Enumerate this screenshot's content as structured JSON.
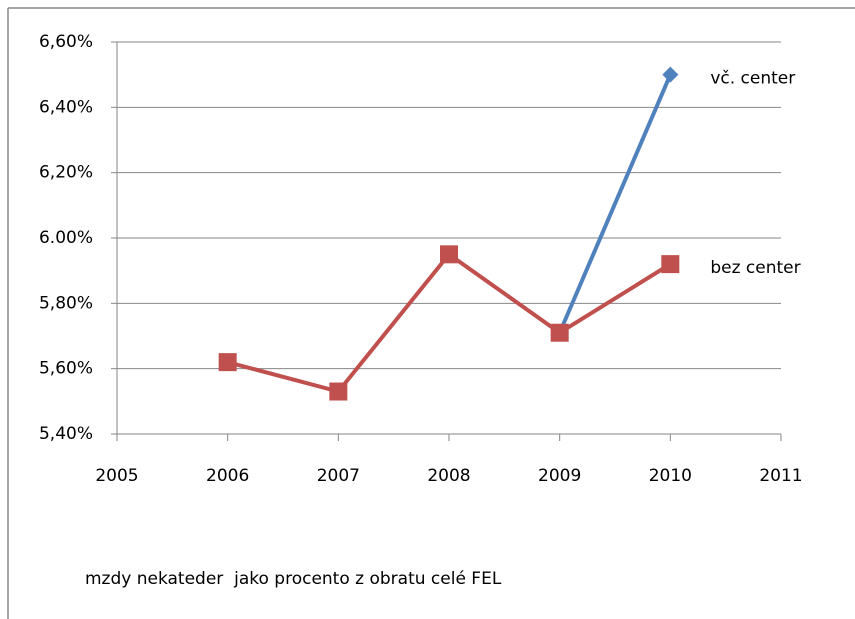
{
  "chart_data": {
    "type": "line",
    "caption": "mzdy nekateder  jako procento z obratu celé FEL",
    "x": [
      2006,
      2007,
      2008,
      2009,
      2010
    ],
    "series": [
      {
        "name": "vč. center",
        "color": "#4f81bd",
        "marker": "diamond",
        "values": [
          null,
          null,
          null,
          5.71,
          6.5
        ]
      },
      {
        "name": "bez center",
        "color": "#c0504d",
        "marker": "square",
        "values": [
          5.62,
          5.53,
          5.95,
          5.71,
          5.92
        ]
      }
    ],
    "xlim": [
      2005,
      2011
    ],
    "xticks": [
      2005,
      2006,
      2007,
      2008,
      2009,
      2010,
      2011
    ],
    "ylim": [
      5.4,
      6.6
    ],
    "yticks": [
      {
        "value": 5.4,
        "label": "5,40%"
      },
      {
        "value": 5.6,
        "label": "5,60%"
      },
      {
        "value": 5.8,
        "label": "5,80%"
      },
      {
        "value": 6.0,
        "label": "6.00%"
      },
      {
        "value": 6.2,
        "label": "6,20%"
      },
      {
        "value": 6.4,
        "label": "6,40%"
      },
      {
        "value": 6.6,
        "label": "6,60%"
      }
    ],
    "grid": true
  }
}
